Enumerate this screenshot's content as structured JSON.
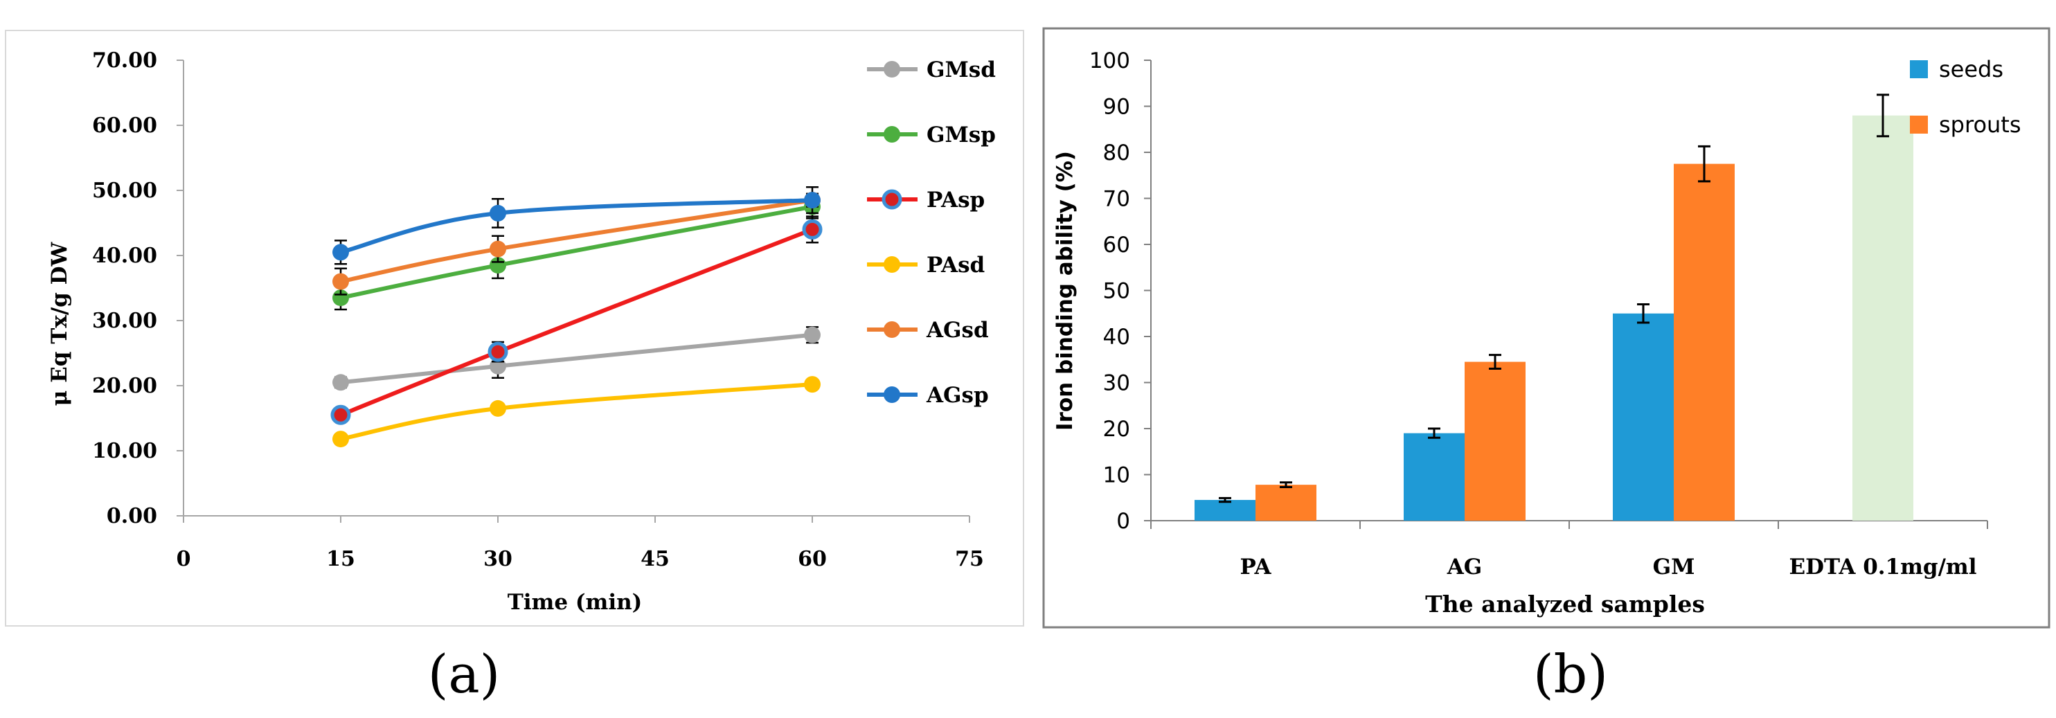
{
  "panel_labels": {
    "a": "(a)",
    "b": "(b)"
  },
  "colors": {
    "GMsd": "#A5A5A5",
    "GMsp": "#4CAE3F",
    "PAsp": "#EE1C1C",
    "PAsd": "#FFC000",
    "AGsd": "#ED7D31",
    "AGsp": "#2277C9",
    "marker_outline_PAsp": "#3D8FD6",
    "marker_inner_PAsp": "#D62020",
    "seeds": "#1F9AD6",
    "sprouts": "#FF7F27",
    "edta": "#DDEFD6",
    "border": "#7F7F7F",
    "axis": "#7F7F7F"
  },
  "chart_data": [
    {
      "id": "a",
      "type": "line",
      "title": "",
      "xlabel": "Time (min)",
      "ylabel": "μ Eq Tx/g DW",
      "xlim": [
        0,
        75
      ],
      "ylim": [
        0,
        70
      ],
      "x_ticks": [
        0,
        15,
        30,
        45,
        60,
        75
      ],
      "x_tick_labels": [
        "0",
        "15",
        "30",
        "45",
        "60",
        "75"
      ],
      "y_ticks": [
        0,
        10,
        20,
        30,
        40,
        50,
        60,
        70
      ],
      "y_tick_labels": [
        "0.00",
        "10.00",
        "20.00",
        "30.00",
        "40.00",
        "50.00",
        "60.00",
        "70.00"
      ],
      "grid": false,
      "legend": "right",
      "series": [
        {
          "name": "GMsd",
          "x": [
            15,
            30,
            60
          ],
          "values": [
            20.5,
            23.0,
            27.8
          ],
          "errors": [
            0.8,
            1.8,
            1.2
          ]
        },
        {
          "name": "GMsp",
          "x": [
            15,
            30,
            60
          ],
          "values": [
            33.5,
            38.5,
            47.5
          ],
          "errors": [
            1.8,
            2.0,
            1.8
          ]
        },
        {
          "name": "PAsp",
          "x": [
            15,
            30,
            60
          ],
          "values": [
            15.5,
            25.2,
            44.0
          ],
          "errors": [
            0.6,
            1.5,
            2.0
          ]
        },
        {
          "name": "PAsd",
          "x": [
            15,
            30,
            60
          ],
          "values": [
            11.8,
            16.5,
            20.2
          ],
          "errors": [
            0.6,
            0.6,
            0.6
          ]
        },
        {
          "name": "AGsd",
          "x": [
            15,
            30,
            60
          ],
          "values": [
            36.0,
            41.0,
            48.5
          ],
          "errors": [
            2.0,
            2.0,
            1.0
          ]
        },
        {
          "name": "AGsp",
          "x": [
            15,
            30,
            60
          ],
          "values": [
            40.5,
            46.5,
            48.5
          ],
          "errors": [
            1.8,
            2.2,
            2.0
          ]
        }
      ]
    },
    {
      "id": "b",
      "type": "bar",
      "title": "",
      "xlabel": "The analyzed samples",
      "ylabel": "Iron binding ability  (%)",
      "ylim": [
        0,
        100
      ],
      "y_ticks": [
        0,
        10,
        20,
        30,
        40,
        50,
        60,
        70,
        80,
        90,
        100
      ],
      "y_tick_labels": [
        "0",
        "10",
        "20",
        "30",
        "40",
        "50",
        "60",
        "70",
        "80",
        "90",
        "100"
      ],
      "categories": [
        "PA",
        "AG",
        "GM",
        "EDTA 0.1mg/ml"
      ],
      "grid": false,
      "legend": "top-right",
      "series": [
        {
          "name": "seeds",
          "values": [
            4.5,
            19.0,
            45.0,
            null
          ],
          "errors": [
            0.4,
            1.0,
            2.0,
            null
          ]
        },
        {
          "name": "sprouts",
          "values": [
            7.8,
            34.5,
            77.5,
            null
          ],
          "errors": [
            0.5,
            1.5,
            3.8,
            null
          ]
        },
        {
          "name": "EDTA 0.1mg/ml",
          "values": [
            null,
            null,
            null,
            88.0
          ],
          "errors": [
            null,
            null,
            null,
            4.5
          ]
        }
      ]
    }
  ]
}
